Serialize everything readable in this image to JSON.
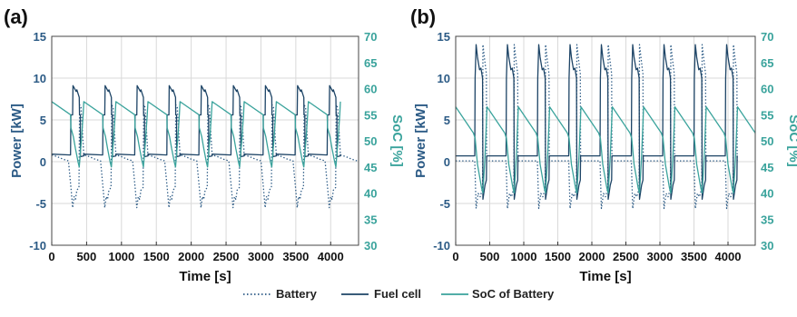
{
  "colors": {
    "battery": "#2b5a85",
    "fuel_cell": "#1d4466",
    "soc": "#3aa39c",
    "left_axis": "#2b5a85",
    "right_axis": "#3aa39c",
    "grid": "#d9d9d9"
  },
  "legend": {
    "position": "bottom-center",
    "items": [
      {
        "name": "Battery",
        "style": "dotted",
        "color": "#2b5a85"
      },
      {
        "name": "Fuel cell",
        "style": "solid",
        "color": "#1d4466"
      },
      {
        "name": "SoC of Battery",
        "style": "solid",
        "color": "#3aa39c"
      }
    ]
  },
  "chart_data": [
    {
      "panel_label": "(a)",
      "type": "line",
      "xlabel": "Time [s]",
      "ylabel": "Power [kW]",
      "y2label": "SoC [%]",
      "xlim": [
        0,
        4400
      ],
      "ylim": [
        -10,
        15
      ],
      "y2lim": [
        30,
        70
      ],
      "xticks": [
        0,
        500,
        1000,
        1500,
        2000,
        2500,
        3000,
        3500,
        4000
      ],
      "yticks": [
        -10,
        -5,
        0,
        5,
        10,
        15
      ],
      "y2ticks": [
        30,
        35,
        40,
        45,
        50,
        55,
        60,
        65,
        70
      ],
      "grid": true,
      "cycle_period_s": 460,
      "cycle_starts_s": [
        0,
        460,
        920,
        1380,
        1840,
        2300,
        2760,
        3220,
        3680,
        4140
      ],
      "series": [
        {
          "name": "Battery",
          "axis": "left",
          "cycle_profile": [
            [
              0,
              0.8
            ],
            [
              80,
              0.6
            ],
            [
              160,
              0.3
            ],
            [
              240,
              0.1
            ],
            [
              280,
              -3.5
            ],
            [
              300,
              -5.5
            ],
            [
              320,
              -4.2
            ],
            [
              340,
              -4.5
            ],
            [
              360,
              -3.4
            ],
            [
              390,
              -3.1
            ],
            [
              400,
              6.8
            ],
            [
              420,
              6.5
            ],
            [
              450,
              2.2
            ],
            [
              460,
              0.8
            ]
          ]
        },
        {
          "name": "Fuel cell",
          "axis": "left",
          "cycle_profile": [
            [
              0,
              0.9
            ],
            [
              270,
              0.8
            ],
            [
              275,
              5.6
            ],
            [
              300,
              5.6
            ],
            [
              305,
              9.1
            ],
            [
              350,
              8.4
            ],
            [
              360,
              8.6
            ],
            [
              395,
              7.7
            ],
            [
              398,
              5.6
            ],
            [
              410,
              5.6
            ],
            [
              412,
              0.6
            ],
            [
              460,
              0.7
            ]
          ]
        },
        {
          "name": "SoC of Battery",
          "axis": "right",
          "cycle_profile": [
            [
              0,
              57.5
            ],
            [
              270,
              55.0
            ],
            [
              275,
              52.5
            ],
            [
              310,
              50.8
            ],
            [
              340,
              48.5
            ],
            [
              380,
              45.8
            ],
            [
              395,
              45.0
            ],
            [
              425,
              50.0
            ],
            [
              450,
              55.0
            ],
            [
              460,
              57.5
            ]
          ]
        }
      ]
    },
    {
      "panel_label": "(b)",
      "type": "line",
      "xlabel": "Time [s]",
      "ylabel": "Power [kW]",
      "y2label": "SoC [%]",
      "xlim": [
        0,
        4400
      ],
      "ylim": [
        -10,
        15
      ],
      "y2lim": [
        30,
        70
      ],
      "xticks": [
        0,
        500,
        1000,
        1500,
        2000,
        2500,
        3000,
        3500,
        4000
      ],
      "yticks": [
        -10,
        -5,
        0,
        5,
        10,
        15
      ],
      "y2ticks": [
        30,
        35,
        40,
        45,
        50,
        55,
        60,
        65,
        70
      ],
      "grid": true,
      "cycle_period_s": 460,
      "cycle_starts_s": [
        0,
        460,
        920,
        1380,
        1840,
        2300,
        2760,
        3220,
        3680,
        4140
      ],
      "series": [
        {
          "name": "Battery",
          "axis": "left",
          "cycle_profile": [
            [
              0,
              0.1
            ],
            [
              280,
              0.1
            ],
            [
              300,
              -5.6
            ],
            [
              330,
              -3.8
            ],
            [
              360,
              -4.2
            ],
            [
              395,
              -3.2
            ],
            [
              400,
              14.0
            ],
            [
              425,
              12.2
            ],
            [
              450,
              10.5
            ],
            [
              455,
              0.1
            ],
            [
              460,
              0.1
            ]
          ]
        },
        {
          "name": "Fuel cell",
          "axis": "left",
          "cycle_profile": [
            [
              0,
              0.7
            ],
            [
              280,
              0.7
            ],
            [
              285,
              10.0
            ],
            [
              300,
              14.0
            ],
            [
              320,
              12.5
            ],
            [
              350,
              11.0
            ],
            [
              370,
              11.2
            ],
            [
              395,
              10.0
            ],
            [
              398,
              0.8
            ],
            [
              400,
              -4.5
            ],
            [
              430,
              -2.8
            ],
            [
              450,
              -2.2
            ],
            [
              455,
              0.7
            ],
            [
              460,
              0.7
            ]
          ]
        },
        {
          "name": "SoC of Battery",
          "axis": "right",
          "cycle_profile": [
            [
              0,
              56.5
            ],
            [
              260,
              51.5
            ],
            [
              285,
              50.5
            ],
            [
              320,
              45.5
            ],
            [
              380,
              41.0
            ],
            [
              400,
              40.0
            ],
            [
              430,
              47.0
            ],
            [
              460,
              56.5
            ]
          ]
        }
      ]
    }
  ]
}
